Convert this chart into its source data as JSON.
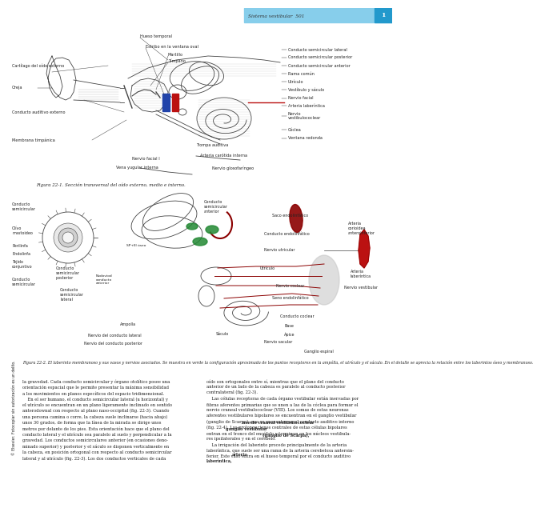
{
  "page_header": "Sistema vestibular  501",
  "page_number": "1",
  "header_bg_light": "#87ceeb",
  "header_bg_dark": "#2299cc",
  "fig1_caption": "Figura 22-1. Sección transversal del oído externo, medio e interno.",
  "fig2_caption": "Figura 22-2. El laberinto membranoso y sus vasos y nervios asociados. Se muestra en verde la configuración aproximada de los puntos receptores en la ampólla, el utrículo y el sáculo. En el detalle se aprecia la relación entre los laberintos óseo y membranoso.",
  "body_text_left": "la gravedad. Cada conducto semicircular y órgano otolítico posee una\norientación espacial que le permite presentar la máxima sensibilidad\na los movimientos en planos específicos del espacio tridimensional.\n    En el ser humano, el conducto semicircular lateral (u horizontal) y\nel utrículo se encuentran en un plano ligeramente inclinado en sentido\nanterodownal con respecto al plano naso-occipital (fig. 22-3). Cuando\nuna persona camina o corre, la cabeza suele inclinarse (hacia abajo)\nunos 30 grados, de forma que la línea de la mirada se dirige unos\nmetros por delante de los pies. Esta orientación hace que el plano del\nconducto lateral y el utrículo sea paralelo al suelo y perpendicular a la\ngravedad. Los conductos semicirculares anterior (en ocasiones deno-\nminado superior) y posterior y el sáculo se disponen verticalmente en\nla cabeza, en posición ortogonal con respecto al conducto semicircular\nlateral y al utrículo (fig. 22-3). Los dos conductos verticales de cada",
  "body_text_right": "oído son ortogonales entre sí, mientras que el plano del conducto\nanterior de un lado de la cabeza es paralelo al conducto posterior\ncontralateral (fig. 22-3).\n    Las células receptoras de cada órgano vestibular están inervadas por\nfibras aferentes primarias que se unen a las de la cóclea para formar el\nnervio craneal vestibulococlear (VIII). Los somas de estas neuronas\naferentes vestibulares bipolares se encuentran en el ganglio vestibular\n(ganglio de Scarpa), que se encuentra en el conducto auditivo interno\n(fig. 22-4). Las prolongaciones centrales de estas células bipolares\nentran en el tronco del encéfalo y terminan en los núcleos vestibula-\nres ipsilaterales y en el cerebelo.\n    La irrigación del laberinto procede principalmente de la arteria\nlaberíntica, que suele ser una rama de la arteria cerebelosa anteroin-\nferior. Este vaso entra en el hueso temporal por el conducto auditivo",
  "sidebar_text": "© Elsevier. Fotocopiar sin autorización es un delito.",
  "bg_color": "#ffffff",
  "text_color": "#222222",
  "diagram_color": "#444444",
  "line_color": "#555555",
  "blue_color": "#2244aa",
  "red_color": "#bb1111",
  "dark_red": "#8b0000",
  "green_color": "#228833",
  "gray_color": "#aaaaaa"
}
